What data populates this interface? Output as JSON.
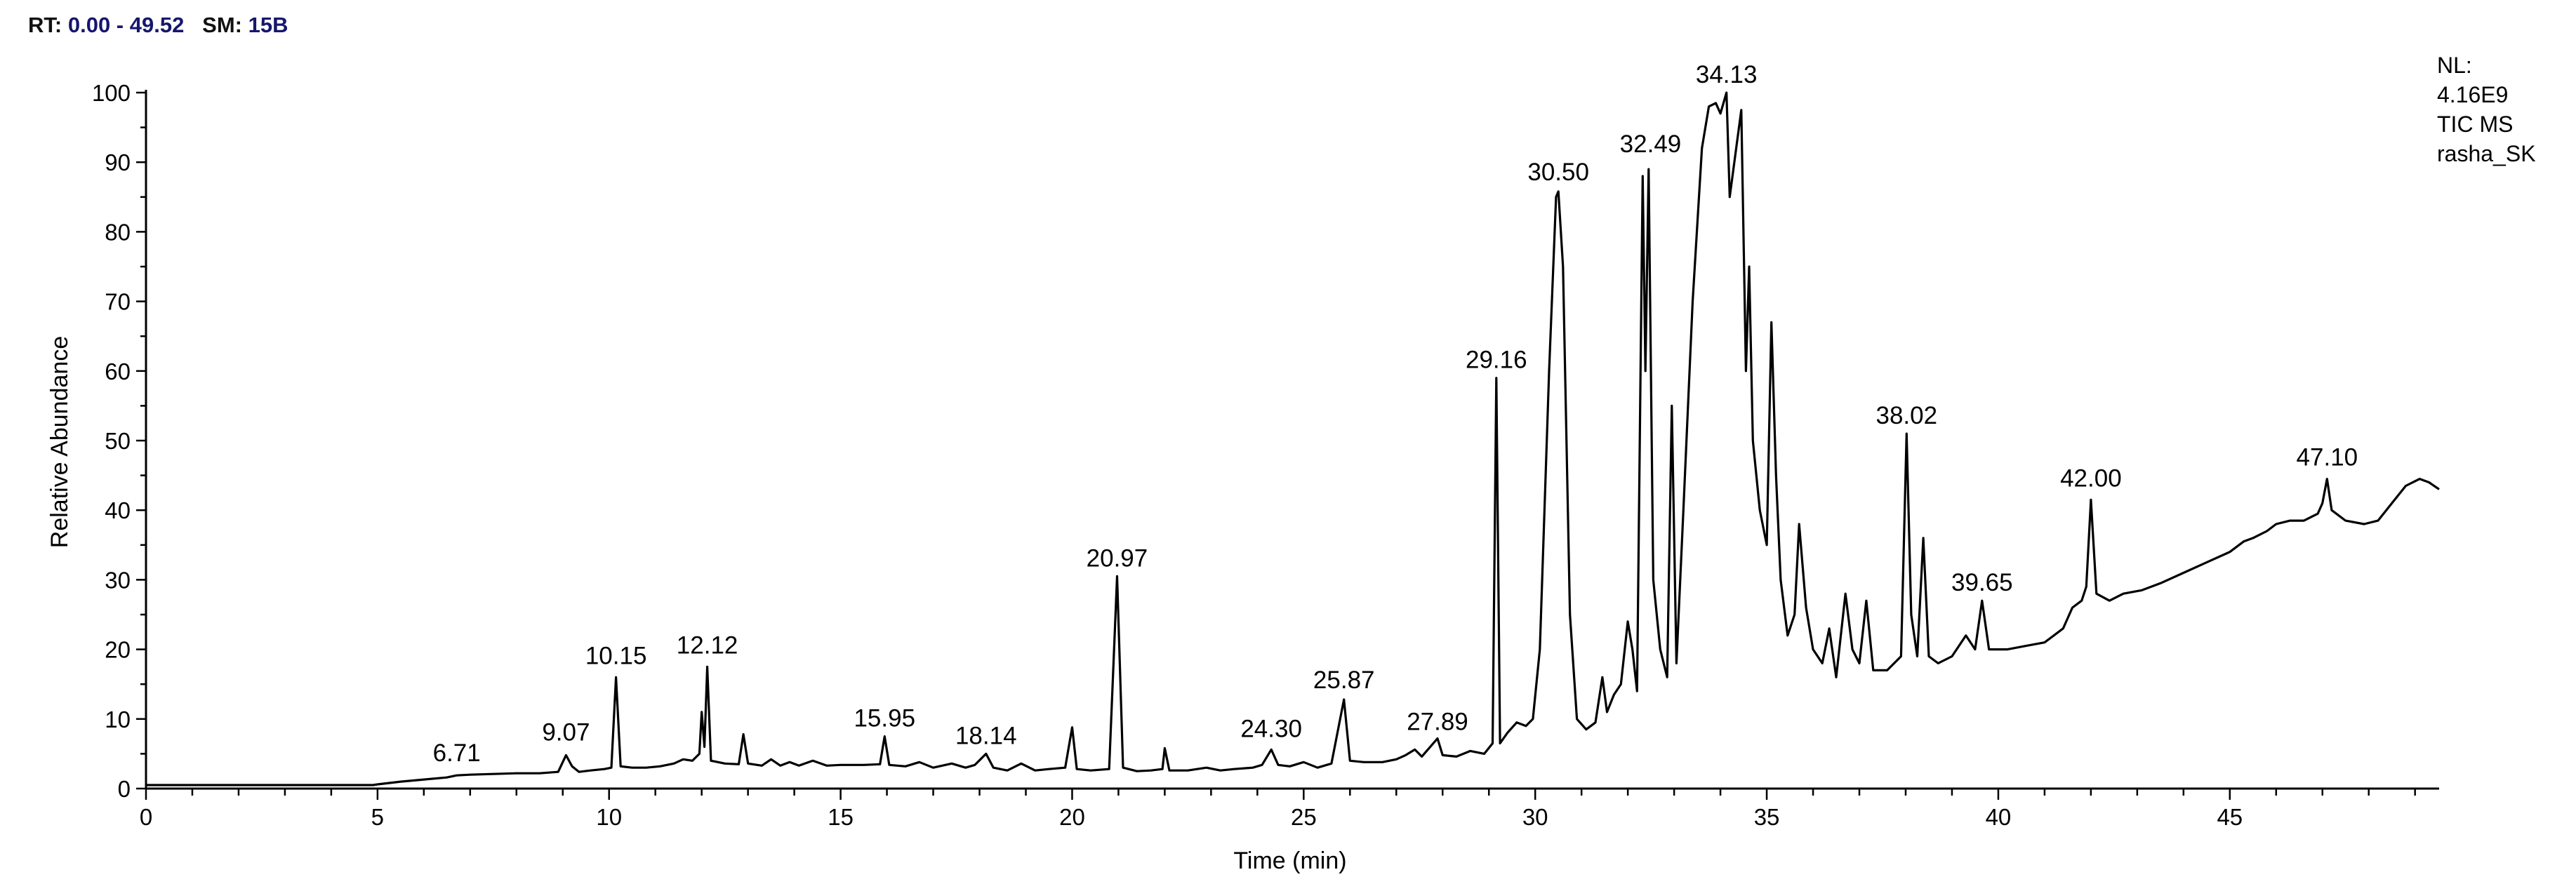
{
  "header": {
    "rt_label": "RT:",
    "rt_value": "0.00 - 49.52",
    "sm_label": "SM:",
    "sm_value": "15B"
  },
  "nl_box": {
    "line1": "NL:",
    "line2": "4.16E9",
    "line3": "TIC  MS",
    "line4": "rasha_SK"
  },
  "chart_data": {
    "type": "line",
    "xlabel": "Time (min)",
    "ylabel": "Relative Abundance",
    "xlim": [
      0,
      49.52
    ],
    "ylim": [
      0,
      100
    ],
    "x_ticks": [
      0,
      5,
      10,
      15,
      20,
      25,
      30,
      35,
      40,
      45
    ],
    "y_ticks": [
      0,
      10,
      20,
      30,
      40,
      50,
      60,
      70,
      80,
      90,
      100
    ],
    "grid": false,
    "line_color": "#000000",
    "peak_labels": [
      {
        "rt": 6.71,
        "label": "6.71",
        "y": 2.5
      },
      {
        "rt": 9.07,
        "label": "9.07",
        "y": 5.5
      },
      {
        "rt": 10.15,
        "label": "10.15",
        "y": 16.5
      },
      {
        "rt": 12.12,
        "label": "12.12",
        "y": 18
      },
      {
        "rt": 15.95,
        "label": "15.95",
        "y": 7.5
      },
      {
        "rt": 18.14,
        "label": "18.14",
        "y": 5.0
      },
      {
        "rt": 20.97,
        "label": "20.97",
        "y": 30.5
      },
      {
        "rt": 24.3,
        "label": "24.30",
        "y": 6
      },
      {
        "rt": 25.87,
        "label": "25.87",
        "y": 13
      },
      {
        "rt": 27.89,
        "label": "27.89",
        "y": 7
      },
      {
        "rt": 29.16,
        "label": "29.16",
        "y": 59
      },
      {
        "rt": 30.5,
        "label": "30.50",
        "y": 86
      },
      {
        "rt": 32.49,
        "label": "32.49",
        "y": 90
      },
      {
        "rt": 34.13,
        "label": "34.13",
        "y": 100
      },
      {
        "rt": 38.02,
        "label": "38.02",
        "y": 51
      },
      {
        "rt": 39.65,
        "label": "39.65",
        "y": 27
      },
      {
        "rt": 42.0,
        "label": "42.00",
        "y": 42
      },
      {
        "rt": 47.1,
        "label": "47.10",
        "y": 45
      }
    ],
    "trace": [
      [
        0,
        0.5
      ],
      [
        4.9,
        0.5
      ],
      [
        5.0,
        0.6
      ],
      [
        5.5,
        1.0
      ],
      [
        6.0,
        1.3
      ],
      [
        6.5,
        1.6
      ],
      [
        6.71,
        1.9
      ],
      [
        7.0,
        2.0
      ],
      [
        7.5,
        2.1
      ],
      [
        8.0,
        2.2
      ],
      [
        8.5,
        2.2
      ],
      [
        8.9,
        2.4
      ],
      [
        9.07,
        4.8
      ],
      [
        9.2,
        3.2
      ],
      [
        9.35,
        2.4
      ],
      [
        9.6,
        2.6
      ],
      [
        9.9,
        2.8
      ],
      [
        10.05,
        3.0
      ],
      [
        10.15,
        16.0
      ],
      [
        10.25,
        3.2
      ],
      [
        10.5,
        3.0
      ],
      [
        10.8,
        3.0
      ],
      [
        11.1,
        3.2
      ],
      [
        11.4,
        3.6
      ],
      [
        11.6,
        4.2
      ],
      [
        11.8,
        4.0
      ],
      [
        11.95,
        5.0
      ],
      [
        12.0,
        11.0
      ],
      [
        12.06,
        6.0
      ],
      [
        12.12,
        17.5
      ],
      [
        12.2,
        4.0
      ],
      [
        12.5,
        3.6
      ],
      [
        12.8,
        3.5
      ],
      [
        12.9,
        7.8
      ],
      [
        13.0,
        3.6
      ],
      [
        13.3,
        3.3
      ],
      [
        13.5,
        4.2
      ],
      [
        13.7,
        3.3
      ],
      [
        13.9,
        3.8
      ],
      [
        14.1,
        3.3
      ],
      [
        14.4,
        4.0
      ],
      [
        14.7,
        3.3
      ],
      [
        15.0,
        3.4
      ],
      [
        15.5,
        3.4
      ],
      [
        15.85,
        3.5
      ],
      [
        15.95,
        7.5
      ],
      [
        16.05,
        3.4
      ],
      [
        16.4,
        3.2
      ],
      [
        16.7,
        3.8
      ],
      [
        17.0,
        3.0
      ],
      [
        17.4,
        3.6
      ],
      [
        17.7,
        3.0
      ],
      [
        17.9,
        3.4
      ],
      [
        18.14,
        5.0
      ],
      [
        18.3,
        3.0
      ],
      [
        18.6,
        2.6
      ],
      [
        18.9,
        3.6
      ],
      [
        19.2,
        2.6
      ],
      [
        19.5,
        2.8
      ],
      [
        19.85,
        3.0
      ],
      [
        20.0,
        8.8
      ],
      [
        20.1,
        2.8
      ],
      [
        20.4,
        2.6
      ],
      [
        20.8,
        2.8
      ],
      [
        20.97,
        30.5
      ],
      [
        21.1,
        3.0
      ],
      [
        21.4,
        2.5
      ],
      [
        21.7,
        2.6
      ],
      [
        21.95,
        2.8
      ],
      [
        22.0,
        5.8
      ],
      [
        22.1,
        2.6
      ],
      [
        22.5,
        2.6
      ],
      [
        22.9,
        3.0
      ],
      [
        23.2,
        2.6
      ],
      [
        23.5,
        2.8
      ],
      [
        23.9,
        3.0
      ],
      [
        24.1,
        3.4
      ],
      [
        24.3,
        5.6
      ],
      [
        24.45,
        3.4
      ],
      [
        24.7,
        3.2
      ],
      [
        25.0,
        3.8
      ],
      [
        25.3,
        3.0
      ],
      [
        25.6,
        3.6
      ],
      [
        25.87,
        12.8
      ],
      [
        26.0,
        4.0
      ],
      [
        26.3,
        3.8
      ],
      [
        26.7,
        3.8
      ],
      [
        27.0,
        4.2
      ],
      [
        27.2,
        4.8
      ],
      [
        27.4,
        5.6
      ],
      [
        27.55,
        4.6
      ],
      [
        27.89,
        7.2
      ],
      [
        28.0,
        4.8
      ],
      [
        28.3,
        4.6
      ],
      [
        28.6,
        5.4
      ],
      [
        28.9,
        5.0
      ],
      [
        29.08,
        6.5
      ],
      [
        29.16,
        59.0
      ],
      [
        29.24,
        6.5
      ],
      [
        29.4,
        8.0
      ],
      [
        29.6,
        9.5
      ],
      [
        29.8,
        9.0
      ],
      [
        29.95,
        10.0
      ],
      [
        30.1,
        20.0
      ],
      [
        30.3,
        60.0
      ],
      [
        30.45,
        85.0
      ],
      [
        30.5,
        85.8
      ],
      [
        30.6,
        75.0
      ],
      [
        30.75,
        25.0
      ],
      [
        30.9,
        10.0
      ],
      [
        31.1,
        8.5
      ],
      [
        31.3,
        9.5
      ],
      [
        31.45,
        16.0
      ],
      [
        31.55,
        11.0
      ],
      [
        31.7,
        13.5
      ],
      [
        31.85,
        15.0
      ],
      [
        32.0,
        24.0
      ],
      [
        32.1,
        20.0
      ],
      [
        32.2,
        14.0
      ],
      [
        32.32,
        88.0
      ],
      [
        32.38,
        60.0
      ],
      [
        32.45,
        89.0
      ],
      [
        32.55,
        30.0
      ],
      [
        32.7,
        20.0
      ],
      [
        32.85,
        16.0
      ],
      [
        32.95,
        55.0
      ],
      [
        33.05,
        18.0
      ],
      [
        33.2,
        40.0
      ],
      [
        33.4,
        70.0
      ],
      [
        33.6,
        92.0
      ],
      [
        33.75,
        98.0
      ],
      [
        33.9,
        98.5
      ],
      [
        34.0,
        97.0
      ],
      [
        34.13,
        100.0
      ],
      [
        34.2,
        85.0
      ],
      [
        34.3,
        90.0
      ],
      [
        34.45,
        97.5
      ],
      [
        34.55,
        60.0
      ],
      [
        34.62,
        75.0
      ],
      [
        34.7,
        50.0
      ],
      [
        34.85,
        40.0
      ],
      [
        35.0,
        35.0
      ],
      [
        35.1,
        67.0
      ],
      [
        35.2,
        45.0
      ],
      [
        35.3,
        30.0
      ],
      [
        35.45,
        22.0
      ],
      [
        35.6,
        25.0
      ],
      [
        35.7,
        38.0
      ],
      [
        35.85,
        26.0
      ],
      [
        36.0,
        20.0
      ],
      [
        36.2,
        18.0
      ],
      [
        36.35,
        23.0
      ],
      [
        36.5,
        16.0
      ],
      [
        36.7,
        28.0
      ],
      [
        36.85,
        20.0
      ],
      [
        37.0,
        18.0
      ],
      [
        37.15,
        27.0
      ],
      [
        37.3,
        17.0
      ],
      [
        37.6,
        17.0
      ],
      [
        37.9,
        19.0
      ],
      [
        38.02,
        51.0
      ],
      [
        38.12,
        25.0
      ],
      [
        38.25,
        19.0
      ],
      [
        38.38,
        36.0
      ],
      [
        38.5,
        19.0
      ],
      [
        38.7,
        18.0
      ],
      [
        39.0,
        19.0
      ],
      [
        39.3,
        22.0
      ],
      [
        39.5,
        20.0
      ],
      [
        39.65,
        27.0
      ],
      [
        39.8,
        20.0
      ],
      [
        40.2,
        20.0
      ],
      [
        40.6,
        20.5
      ],
      [
        41.0,
        21.0
      ],
      [
        41.4,
        23.0
      ],
      [
        41.6,
        26.0
      ],
      [
        41.8,
        27.0
      ],
      [
        41.9,
        29.0
      ],
      [
        42.0,
        41.5
      ],
      [
        42.12,
        28.0
      ],
      [
        42.4,
        27.0
      ],
      [
        42.7,
        28.0
      ],
      [
        43.1,
        28.5
      ],
      [
        43.5,
        29.5
      ],
      [
        44.0,
        31.0
      ],
      [
        44.5,
        32.5
      ],
      [
        45.0,
        34.0
      ],
      [
        45.3,
        35.5
      ],
      [
        45.5,
        36.0
      ],
      [
        45.8,
        37.0
      ],
      [
        46.0,
        38.0
      ],
      [
        46.3,
        38.5
      ],
      [
        46.6,
        38.5
      ],
      [
        46.9,
        39.5
      ],
      [
        47.0,
        41.0
      ],
      [
        47.1,
        44.5
      ],
      [
        47.2,
        40.0
      ],
      [
        47.5,
        38.5
      ],
      [
        47.9,
        38.0
      ],
      [
        48.2,
        38.5
      ],
      [
        48.5,
        41.0
      ],
      [
        48.8,
        43.5
      ],
      [
        49.1,
        44.5
      ],
      [
        49.3,
        44.0
      ],
      [
        49.52,
        43.0
      ]
    ]
  }
}
